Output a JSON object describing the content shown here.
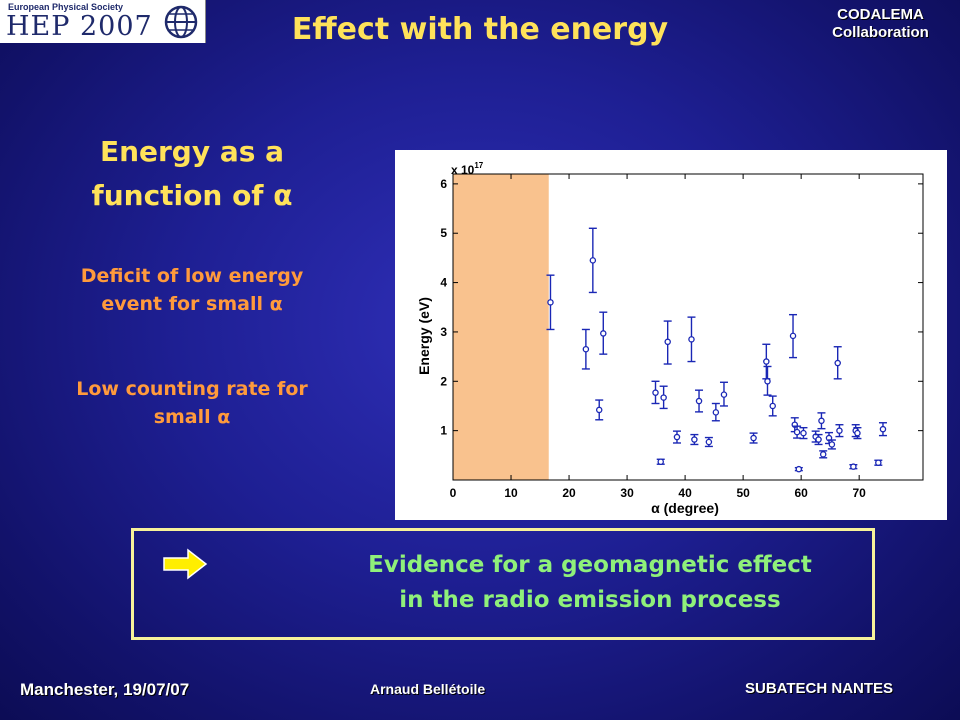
{
  "logo": {
    "society": "European Physical Society",
    "event": "HEP 2007"
  },
  "slide": {
    "title": "Effect with the energy",
    "collaboration_line1": "CODALEMA",
    "collaboration_line2": "Collaboration"
  },
  "sidebar": {
    "heading_line1": "Energy as a",
    "heading_line2": "function of α",
    "point1_line1": "Deficit of low energy",
    "point1_line2": "event for small α",
    "point2_line1": "Low counting rate for",
    "point2_line2": "small α"
  },
  "conclusion": {
    "line1": "Evidence for a geomagnetic effect",
    "line2": "in the radio emission process",
    "arrow_color": "#ffee00"
  },
  "footer": {
    "location_date": "Manchester, 19/07/07",
    "author": "Arnaud Bellétoile",
    "institute": "SUBATECH NANTES"
  },
  "chart_data": {
    "type": "scatter",
    "xlabel": "α (degree)",
    "ylabel": "Energy (eV)",
    "y_multiplier_label": "x 10",
    "y_multiplier_exponent": "17",
    "xlim": [
      0,
      81
    ],
    "ylim": [
      0,
      6.2
    ],
    "xticks": [
      0,
      10,
      20,
      30,
      40,
      50,
      60,
      70
    ],
    "yticks": [
      1,
      2,
      3,
      4,
      5,
      6
    ],
    "shaded_region": {
      "x_from": 0,
      "x_to": 16.5,
      "color": "#f9c28e"
    },
    "marker_color": "#1a27b5",
    "grid": false,
    "points": [
      {
        "x": 16.8,
        "y": 3.6,
        "lo": 3.05,
        "hi": 4.15
      },
      {
        "x": 22.9,
        "y": 2.65,
        "lo": 2.25,
        "hi": 3.05
      },
      {
        "x": 24.1,
        "y": 4.45,
        "lo": 3.8,
        "hi": 5.1
      },
      {
        "x": 25.2,
        "y": 1.42,
        "lo": 1.22,
        "hi": 1.62
      },
      {
        "x": 25.9,
        "y": 2.97,
        "lo": 2.55,
        "hi": 3.4
      },
      {
        "x": 34.9,
        "y": 1.77,
        "lo": 1.55,
        "hi": 2.0
      },
      {
        "x": 35.8,
        "y": 0.37,
        "lo": 0.32,
        "hi": 0.42
      },
      {
        "x": 36.3,
        "y": 1.67,
        "lo": 1.45,
        "hi": 1.9
      },
      {
        "x": 37.0,
        "y": 2.8,
        "lo": 2.35,
        "hi": 3.22
      },
      {
        "x": 38.6,
        "y": 0.87,
        "lo": 0.75,
        "hi": 0.99
      },
      {
        "x": 41.1,
        "y": 2.85,
        "lo": 2.4,
        "hi": 3.3
      },
      {
        "x": 41.6,
        "y": 0.82,
        "lo": 0.72,
        "hi": 0.92
      },
      {
        "x": 42.4,
        "y": 1.6,
        "lo": 1.38,
        "hi": 1.82
      },
      {
        "x": 44.1,
        "y": 0.77,
        "lo": 0.68,
        "hi": 0.86
      },
      {
        "x": 45.3,
        "y": 1.37,
        "lo": 1.2,
        "hi": 1.55
      },
      {
        "x": 46.7,
        "y": 1.73,
        "lo": 1.5,
        "hi": 1.98
      },
      {
        "x": 51.8,
        "y": 0.85,
        "lo": 0.75,
        "hi": 0.95
      },
      {
        "x": 54.0,
        "y": 2.4,
        "lo": 2.05,
        "hi": 2.75
      },
      {
        "x": 54.2,
        "y": 2.0,
        "lo": 1.72,
        "hi": 2.3
      },
      {
        "x": 55.1,
        "y": 1.5,
        "lo": 1.3,
        "hi": 1.7
      },
      {
        "x": 58.6,
        "y": 2.92,
        "lo": 2.48,
        "hi": 3.35
      },
      {
        "x": 58.9,
        "y": 1.12,
        "lo": 0.98,
        "hi": 1.26
      },
      {
        "x": 59.3,
        "y": 0.97,
        "lo": 0.85,
        "hi": 1.09
      },
      {
        "x": 59.6,
        "y": 0.22,
        "lo": 0.19,
        "hi": 0.25
      },
      {
        "x": 60.4,
        "y": 0.95,
        "lo": 0.84,
        "hi": 1.06
      },
      {
        "x": 62.5,
        "y": 0.88,
        "lo": 0.77,
        "hi": 0.99
      },
      {
        "x": 63.0,
        "y": 0.82,
        "lo": 0.72,
        "hi": 0.92
      },
      {
        "x": 63.5,
        "y": 1.2,
        "lo": 1.04,
        "hi": 1.36
      },
      {
        "x": 63.8,
        "y": 0.52,
        "lo": 0.45,
        "hi": 0.59
      },
      {
        "x": 64.8,
        "y": 0.85,
        "lo": 0.74,
        "hi": 0.96
      },
      {
        "x": 65.3,
        "y": 0.72,
        "lo": 0.63,
        "hi": 0.81
      },
      {
        "x": 66.3,
        "y": 2.37,
        "lo": 2.05,
        "hi": 2.7
      },
      {
        "x": 66.6,
        "y": 1.0,
        "lo": 0.88,
        "hi": 1.12
      },
      {
        "x": 69.0,
        "y": 0.27,
        "lo": 0.23,
        "hi": 0.31
      },
      {
        "x": 69.4,
        "y": 1.0,
        "lo": 0.88,
        "hi": 1.12
      },
      {
        "x": 69.7,
        "y": 0.95,
        "lo": 0.84,
        "hi": 1.06
      },
      {
        "x": 73.3,
        "y": 0.35,
        "lo": 0.3,
        "hi": 0.4
      },
      {
        "x": 74.1,
        "y": 1.03,
        "lo": 0.9,
        "hi": 1.16
      }
    ]
  }
}
